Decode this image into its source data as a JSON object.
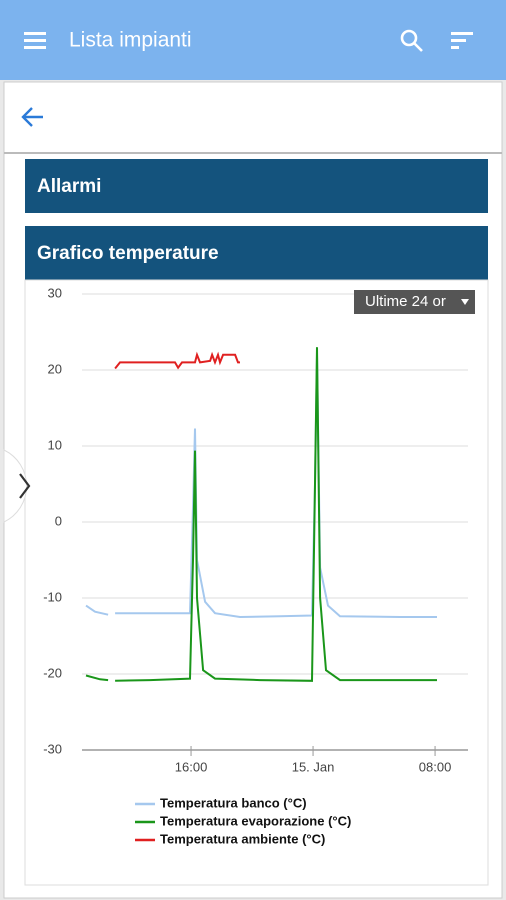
{
  "app_bar": {
    "title": "Lista impianti"
  },
  "sections": [
    {
      "title": "Allarmi"
    },
    {
      "title": "Grafico temperature"
    }
  ],
  "range_select": {
    "label": "Ultime 24 or"
  },
  "chart_data": {
    "type": "line",
    "ylim": [
      -30,
      30
    ],
    "yticks": [
      -30,
      -20,
      -10,
      0,
      10,
      20,
      30
    ],
    "xlim": [
      8.85,
      34.16
    ],
    "xticks": [
      {
        "value": 16,
        "label": "16:00"
      },
      {
        "value": 24,
        "label": "15. Jan"
      },
      {
        "value": 32,
        "label": "08:00"
      }
    ],
    "grid": true,
    "legend": "bottom",
    "series": [
      {
        "name": "Temperatura banco (°C)",
        "color": "#a5c8ee",
        "x": [
          9.11,
          9.7,
          10.56,
          10.8,
          11.02,
          13.31,
          15.93,
          16.13,
          16.26,
          16.39,
          16.92,
          17.57,
          19.21,
          21.84,
          23.93,
          24.13,
          24.26,
          24.46,
          24.98,
          25.77,
          29.7,
          32.13
        ],
        "values": [
          -11,
          -11.8,
          -12.2,
          null,
          -12,
          -12,
          -12,
          2,
          12.3,
          -5,
          -10.5,
          -12,
          -12.5,
          -12.4,
          -12.3,
          5,
          22,
          -6,
          -11,
          -12.4,
          -12.5,
          -12.5
        ]
      },
      {
        "name": "Temperatura evaporazione (°C)",
        "color": "#1a961a",
        "x": [
          9.11,
          10.03,
          10.56,
          10.8,
          11.02,
          13.31,
          15.93,
          16.13,
          16.26,
          16.39,
          16.79,
          17.57,
          20.52,
          23.93,
          24.13,
          24.26,
          24.46,
          24.85,
          25.77,
          32.13
        ],
        "values": [
          -20.2,
          -20.7,
          -20.8,
          null,
          -20.9,
          -20.8,
          -20.6,
          -5,
          9.4,
          -10,
          -19.5,
          -20.6,
          -20.8,
          -20.9,
          5,
          23,
          -10,
          -19.5,
          -20.8,
          -20.8
        ]
      },
      {
        "name": "Temperatura ambiente (°C)",
        "color": "#e02020",
        "x": [
          11.02,
          11.34,
          14.95,
          15.15,
          15.41,
          16.26,
          16.39,
          16.59,
          17.25,
          17.38,
          17.57,
          17.77,
          17.9,
          18.1,
          18.56,
          18.89,
          19.08,
          19.21
        ],
        "values": [
          20.2,
          21,
          21,
          20.3,
          21,
          21,
          22,
          21,
          21.2,
          22,
          21,
          22,
          21,
          22,
          22,
          22,
          21,
          21
        ]
      }
    ]
  }
}
